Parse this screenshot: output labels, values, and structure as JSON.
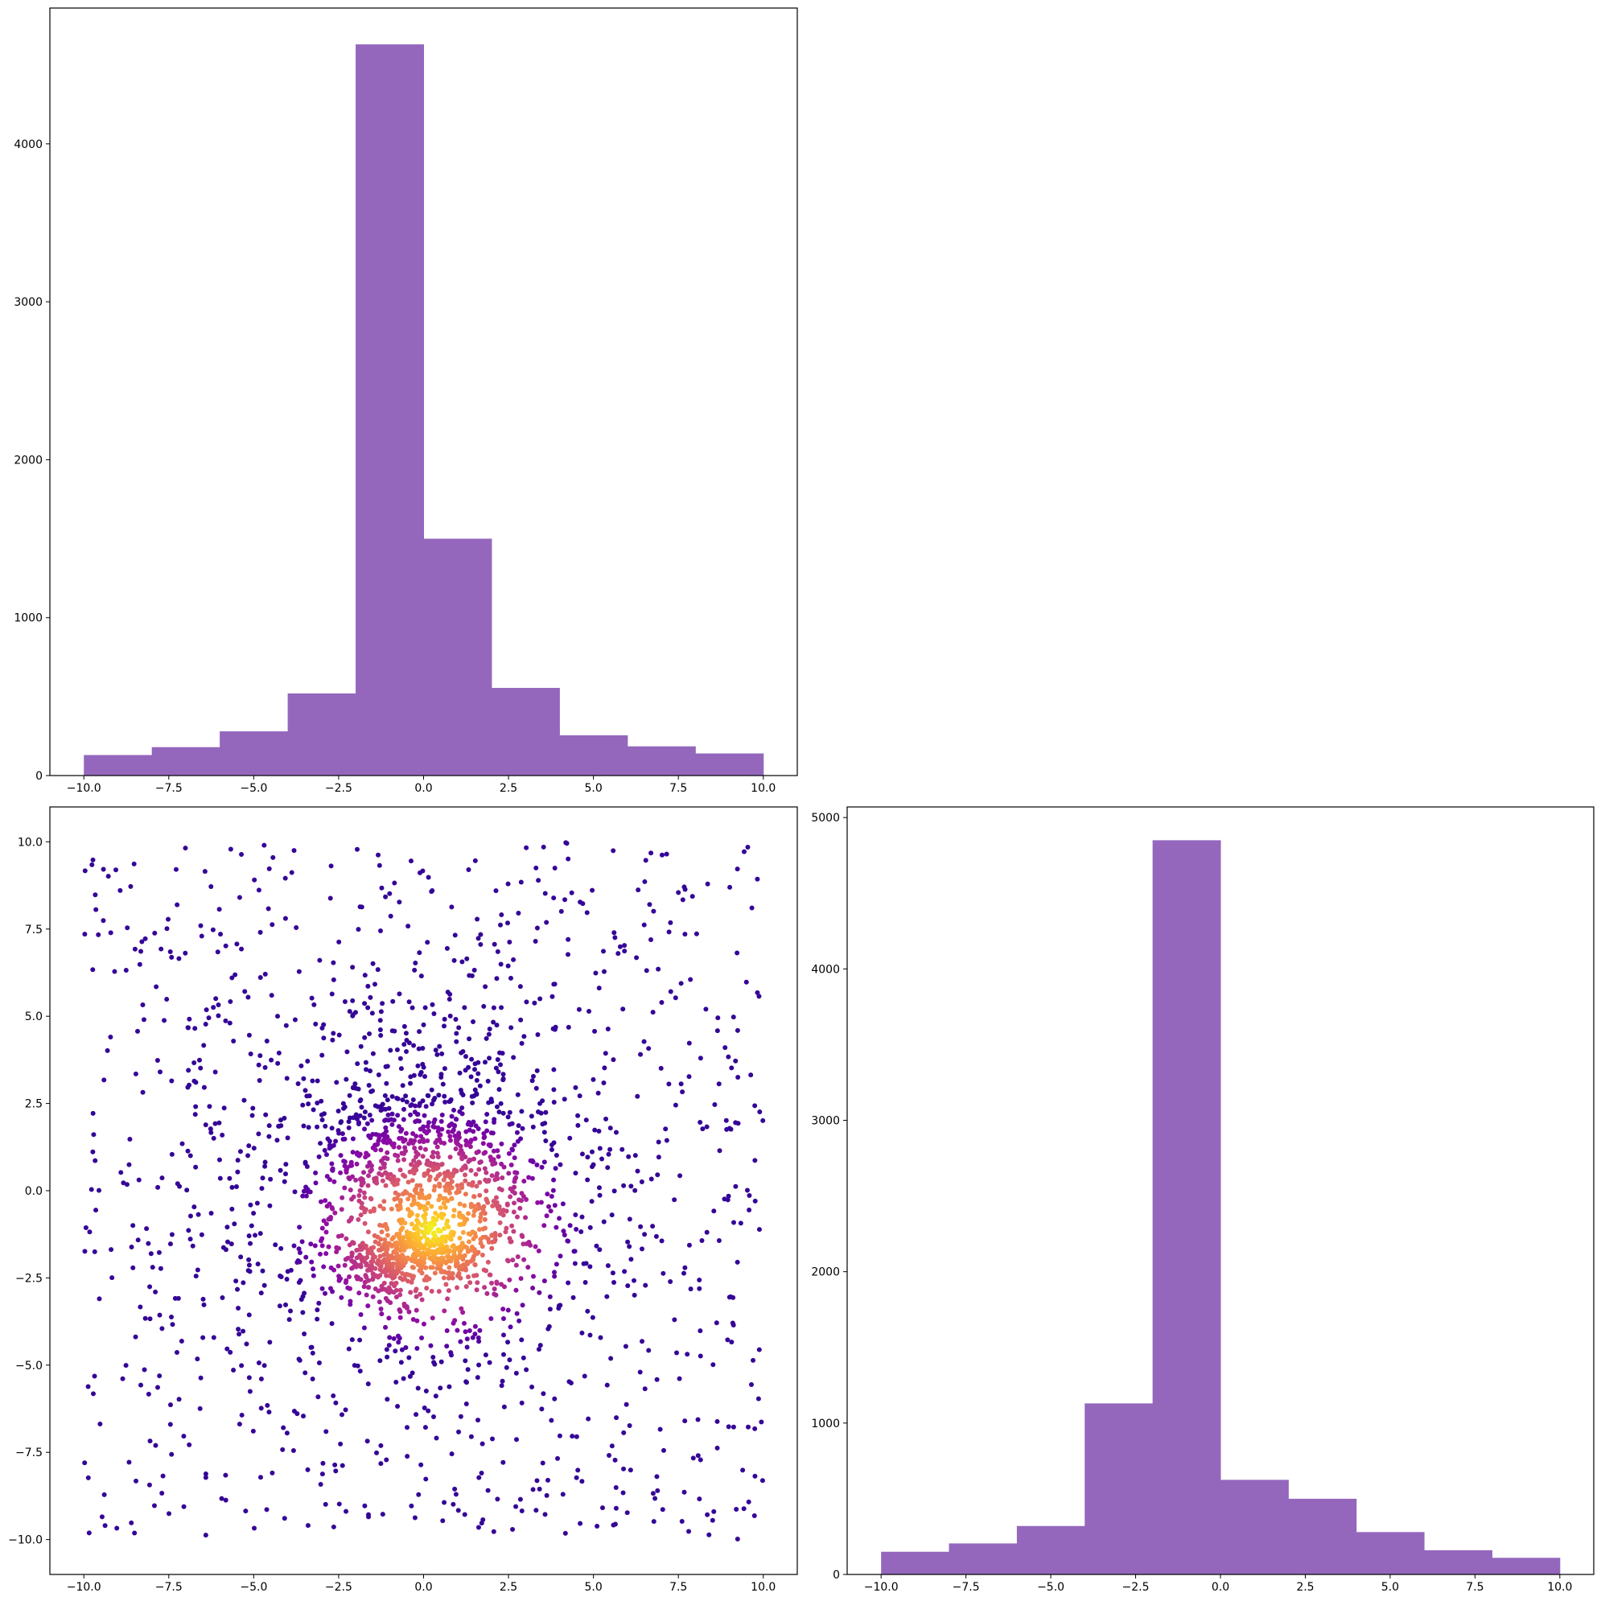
{
  "chart_data": [
    {
      "panel": "top-left",
      "type": "bar",
      "subtype": "histogram",
      "color": "#9467bd",
      "bin_edges": [
        -10,
        -8,
        -6,
        -4,
        -2,
        0,
        2,
        4,
        6,
        8,
        10
      ],
      "values": [
        130,
        180,
        280,
        520,
        4630,
        1500,
        555,
        255,
        185,
        140
      ],
      "xlim": [
        -11,
        11
      ],
      "ylim": [
        0,
        4860
      ],
      "xticks": [
        -10,
        -7.5,
        -5,
        -2.5,
        0,
        2.5,
        5,
        7.5,
        10
      ],
      "xtick_labels": [
        "−10.0",
        "−7.5",
        "−5.0",
        "−2.5",
        "0.0",
        "2.5",
        "5.0",
        "7.5",
        "10.0"
      ],
      "yticks": [
        0,
        1000,
        2000,
        3000,
        4000
      ],
      "ytick_labels": [
        "0",
        "1000",
        "2000",
        "3000",
        "4000"
      ],
      "grid": false,
      "title": "",
      "xlabel": "",
      "ylabel": ""
    },
    {
      "panel": "bottom-left",
      "type": "scatter",
      "colormap": "plasma",
      "color_meaning": "point density (dark purple = sparse, yellow = dense)",
      "n_points": 2600,
      "x_range": [
        -10,
        10
      ],
      "y_range": [
        -10,
        10
      ],
      "dense_core": {
        "x": 0.3,
        "y": -1.1
      },
      "xlim": [
        -11,
        11
      ],
      "ylim": [
        -11,
        11
      ],
      "xticks": [
        -10,
        -7.5,
        -5,
        -2.5,
        0,
        2.5,
        5,
        7.5,
        10
      ],
      "xtick_labels": [
        "−10.0",
        "−7.5",
        "−5.0",
        "−2.5",
        "0.0",
        "2.5",
        "5.0",
        "7.5",
        "10.0"
      ],
      "yticks": [
        10,
        7.5,
        5,
        2.5,
        0,
        -2.5,
        -5,
        -7.5,
        -10
      ],
      "ytick_labels": [
        "10.0",
        "7.5",
        "5.0",
        "2.5",
        "0.0",
        "−2.5",
        "−5.0",
        "−7.5",
        "−10.0"
      ],
      "grid": false,
      "title": "",
      "xlabel": "",
      "ylabel": ""
    },
    {
      "panel": "bottom-right",
      "type": "bar",
      "subtype": "histogram",
      "color": "#9467bd",
      "bin_edges": [
        -10,
        -8,
        -6,
        -4,
        -2,
        0,
        2,
        4,
        6,
        8,
        10
      ],
      "values": [
        150,
        205,
        320,
        1130,
        4850,
        625,
        500,
        280,
        160,
        110
      ],
      "xlim": [
        -11,
        11
      ],
      "ylim": [
        0,
        5070
      ],
      "xticks": [
        -10,
        -7.5,
        -5,
        -2.5,
        0,
        2.5,
        5,
        7.5,
        10
      ],
      "xtick_labels": [
        "−10.0",
        "−7.5",
        "−5.0",
        "−2.5",
        "0.0",
        "2.5",
        "5.0",
        "7.5",
        "10.0"
      ],
      "yticks": [
        0,
        1000,
        2000,
        3000,
        4000,
        5000
      ],
      "ytick_labels": [
        "0",
        "1000",
        "2000",
        "3000",
        "4000",
        "5000"
      ],
      "grid": false,
      "title": "",
      "xlabel": "",
      "ylabel": ""
    }
  ]
}
